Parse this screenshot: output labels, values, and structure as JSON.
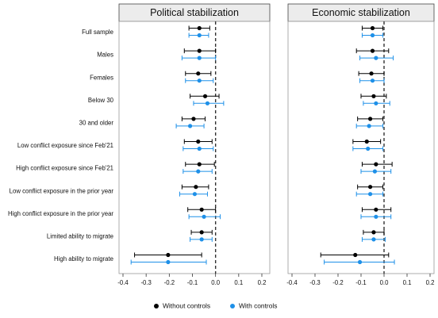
{
  "chart_data": {
    "type": "scatter",
    "xlim": [
      -0.4,
      0.2
    ],
    "xticks": [
      "-0.4",
      "-0.3",
      "-0.2",
      "-0.1",
      "0.0",
      "0.1",
      "0.2"
    ],
    "reference_line": 0,
    "legend_position": "bottom",
    "categories": [
      "Full sample",
      "Males",
      "Females",
      "Below 30",
      "30 and older",
      "Low conflict exposure since Feb'21",
      "High conflict exposure since Feb'21",
      "Low conflict exposure in the prior year",
      "High conflict exposure in the prior year",
      "Limited ability to migrate",
      "High ability to migrate"
    ],
    "series": [
      {
        "name": "Without controls",
        "color": "#000000"
      },
      {
        "name": "With controls",
        "color": "#1e90e8"
      }
    ],
    "panels": [
      {
        "title": "Political stabilization",
        "series_values": [
          {
            "estimate": [
              -0.07,
              -0.07,
              -0.075,
              -0.045,
              -0.095,
              -0.075,
              -0.07,
              -0.085,
              -0.06,
              -0.06,
              -0.205
            ],
            "ci_low": [
              -0.115,
              -0.135,
              -0.13,
              -0.11,
              -0.145,
              -0.135,
              -0.13,
              -0.145,
              -0.12,
              -0.105,
              -0.35
            ],
            "ci_high": [
              -0.025,
              0.0,
              -0.02,
              0.015,
              -0.045,
              -0.015,
              -0.005,
              -0.03,
              0.0,
              -0.015,
              -0.06
            ]
          },
          {
            "estimate": [
              -0.07,
              -0.07,
              -0.07,
              -0.035,
              -0.11,
              -0.07,
              -0.075,
              -0.09,
              -0.05,
              -0.06,
              -0.205
            ],
            "ci_low": [
              -0.115,
              -0.145,
              -0.13,
              -0.095,
              -0.17,
              -0.14,
              -0.14,
              -0.155,
              -0.115,
              -0.11,
              -0.365
            ],
            "ci_high": [
              -0.03,
              0.0,
              -0.01,
              0.035,
              -0.05,
              -0.01,
              -0.015,
              -0.035,
              0.02,
              -0.015,
              -0.04
            ]
          }
        ]
      },
      {
        "title": "Economic stabilization",
        "series_values": [
          {
            "estimate": [
              -0.05,
              -0.05,
              -0.055,
              -0.045,
              -0.06,
              -0.075,
              -0.035,
              -0.06,
              -0.035,
              -0.045,
              -0.125
            ],
            "ci_low": [
              -0.095,
              -0.12,
              -0.11,
              -0.1,
              -0.115,
              -0.135,
              -0.095,
              -0.115,
              -0.095,
              -0.09,
              -0.275
            ],
            "ci_high": [
              -0.005,
              0.02,
              0.0,
              0.01,
              -0.005,
              -0.015,
              0.035,
              -0.005,
              0.03,
              0.0,
              0.02
            ]
          },
          {
            "estimate": [
              -0.05,
              -0.035,
              -0.05,
              -0.035,
              -0.065,
              -0.07,
              -0.04,
              -0.06,
              -0.035,
              -0.045,
              -0.105
            ],
            "ci_low": [
              -0.095,
              -0.105,
              -0.105,
              -0.09,
              -0.12,
              -0.135,
              -0.1,
              -0.12,
              -0.1,
              -0.095,
              -0.26
            ],
            "ci_high": [
              -0.005,
              0.04,
              0.0,
              0.025,
              -0.005,
              -0.005,
              0.03,
              -0.005,
              0.03,
              0.005,
              0.045
            ]
          }
        ]
      }
    ]
  }
}
